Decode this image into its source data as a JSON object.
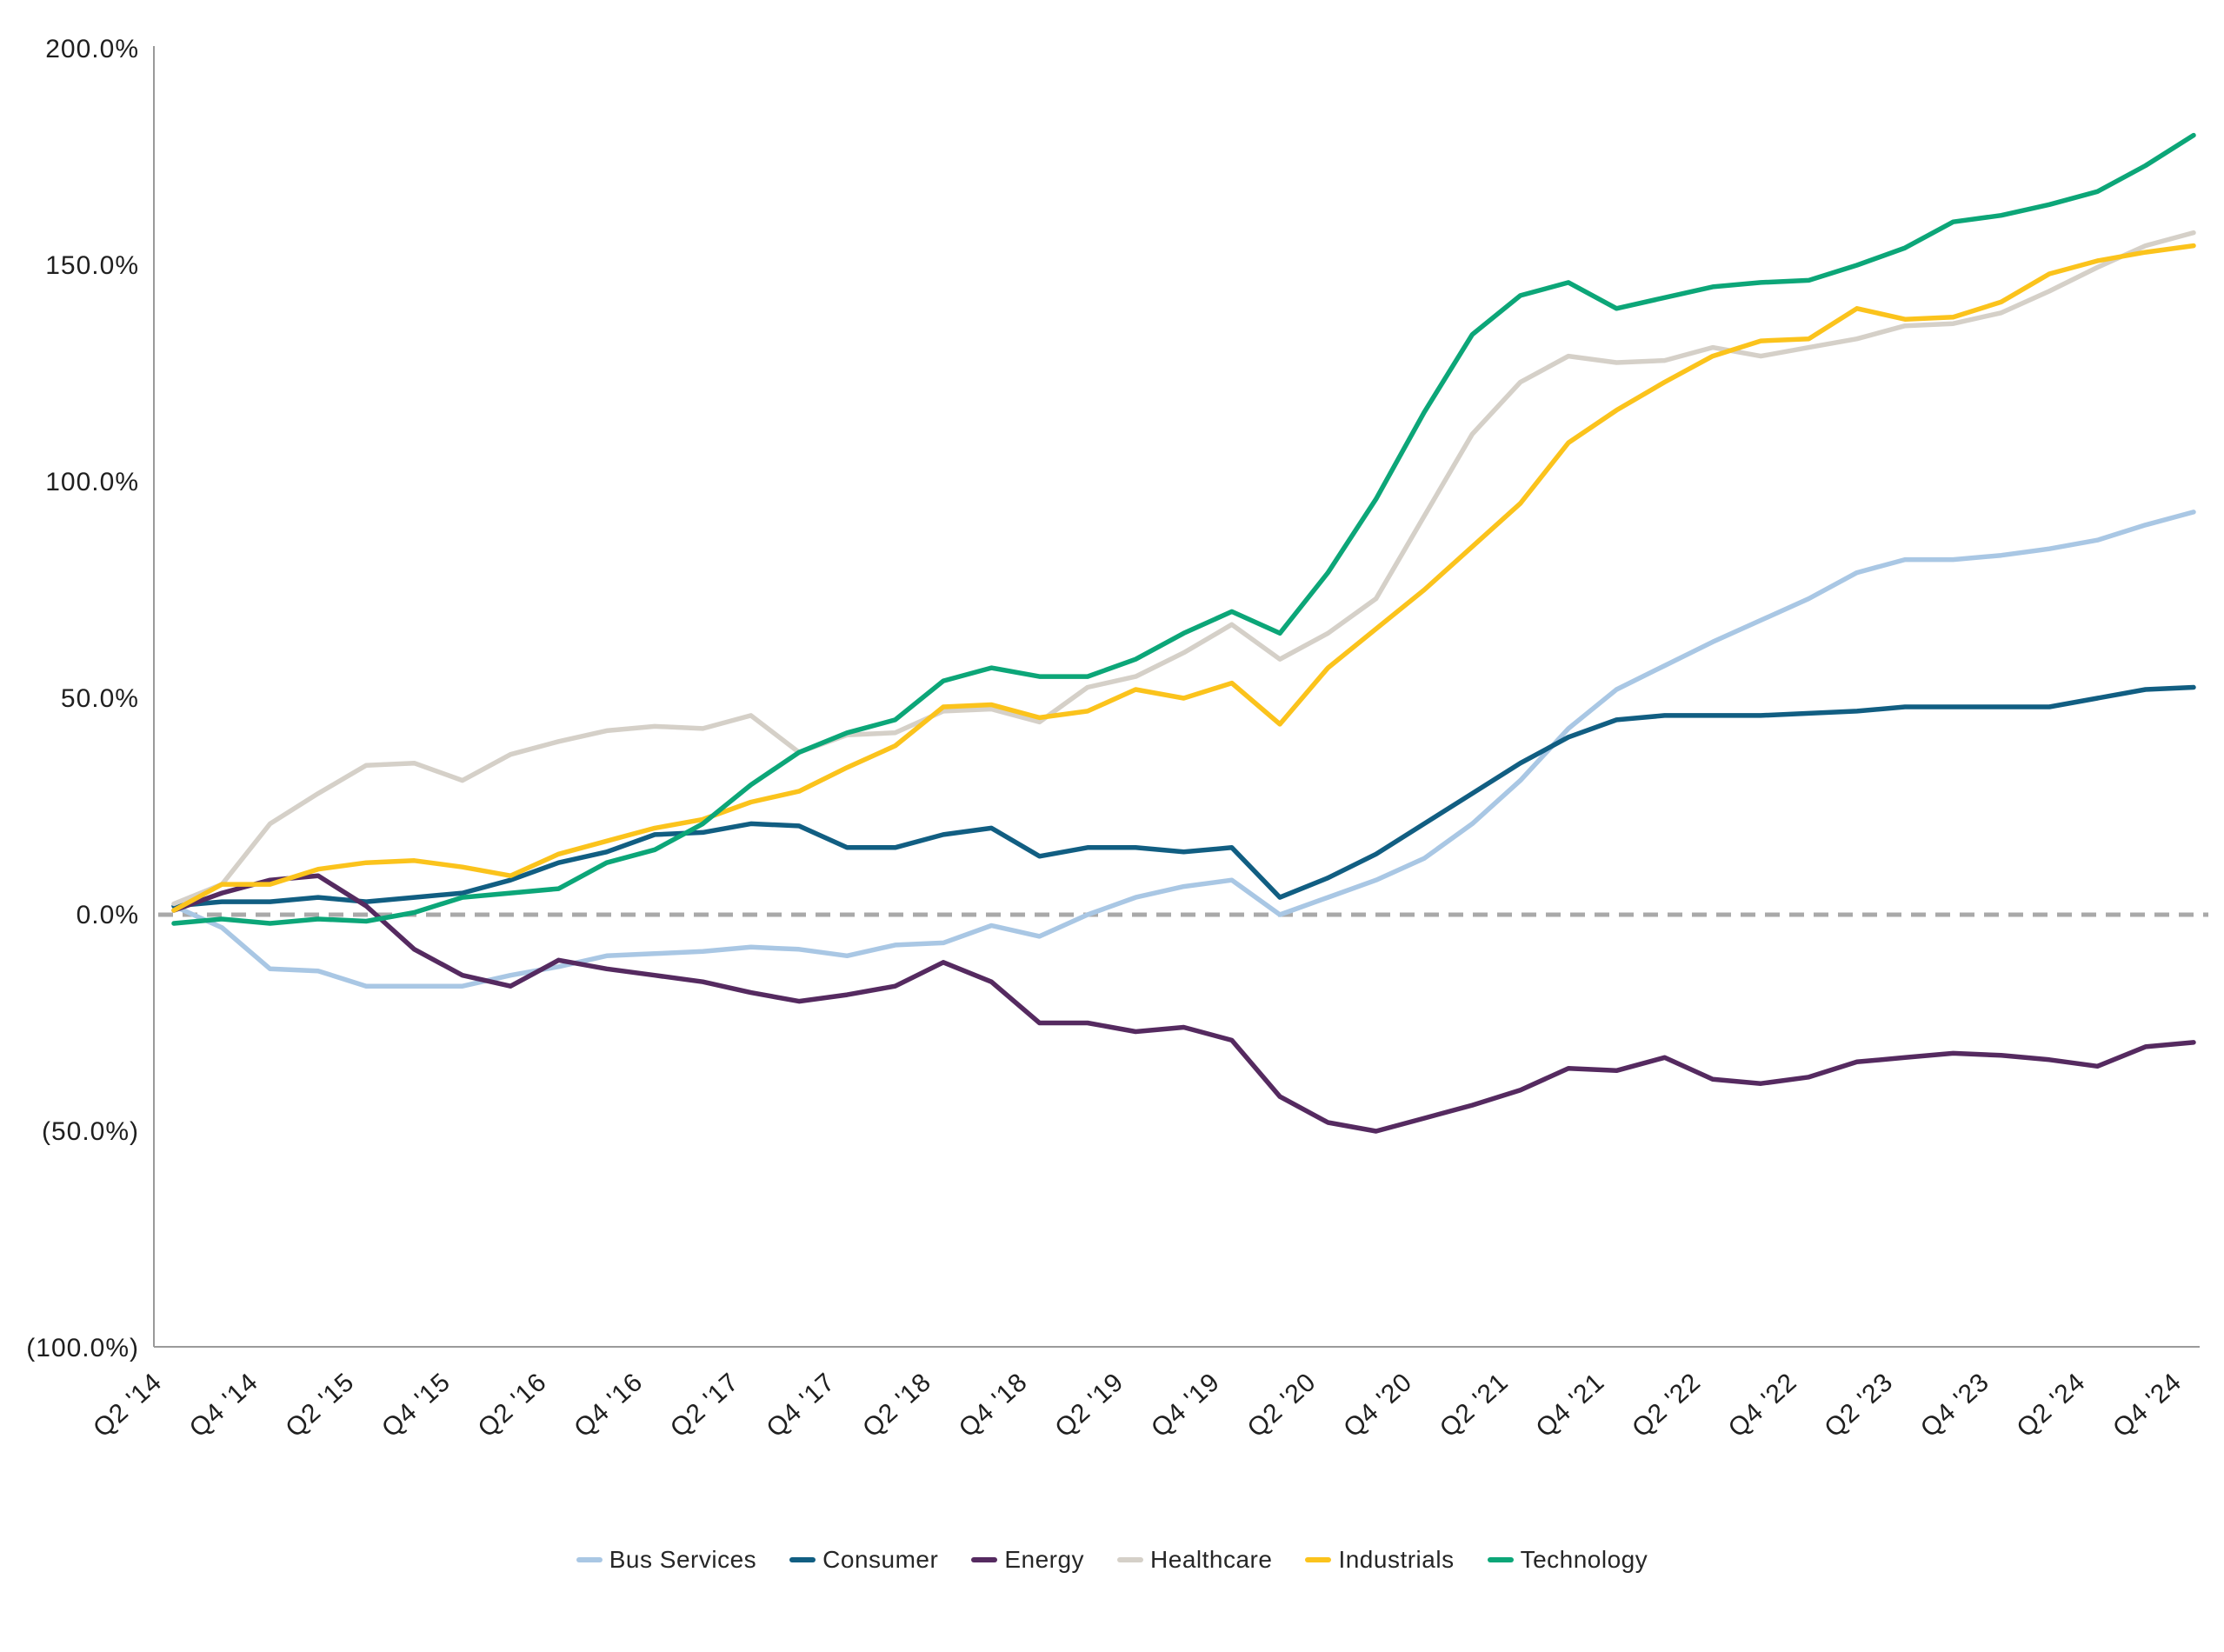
{
  "chart_data": {
    "type": "line",
    "title": "",
    "xlabel": "",
    "ylabel": "",
    "ylim": [
      -100,
      200
    ],
    "grid": "off",
    "zero_line": "dashed",
    "y_ticks": [
      {
        "value": 200,
        "label": "200.0%"
      },
      {
        "value": 150,
        "label": "150.0%"
      },
      {
        "value": 100,
        "label": "100.0%"
      },
      {
        "value": 50,
        "label": "50.0%"
      },
      {
        "value": 0,
        "label": "0.0%"
      },
      {
        "value": -50,
        "label": "(50.0%)"
      },
      {
        "value": -100,
        "label": "(100.0%)"
      }
    ],
    "x_tick_labels": [
      "Q2 '14",
      "Q4 '14",
      "Q2 '15",
      "Q4 '15",
      "Q2 '16",
      "Q4 '16",
      "Q2 '17",
      "Q4 '17",
      "Q2 '18",
      "Q4 '18",
      "Q2 '19",
      "Q4 '19",
      "Q2 '20",
      "Q4 '20",
      "Q2 '21",
      "Q4 '21",
      "Q2 '22",
      "Q4 '22",
      "Q2 '23",
      "Q4 '23",
      "Q2 '24",
      "Q4 '24"
    ],
    "x_quarters_total": 43,
    "legend_position": "bottom-center",
    "series": [
      {
        "name": "Bus Services",
        "color": "#a9c7e4",
        "values": [
          2,
          -3,
          -12.5,
          -13,
          -16.5,
          -16.5,
          -16.5,
          -14,
          -12,
          -9.5,
          -9,
          -8.5,
          -7.5,
          -8,
          -9.5,
          -7,
          -6.5,
          -2.5,
          -5,
          0,
          4,
          6.5,
          8,
          0,
          4,
          8,
          13,
          21,
          31,
          43,
          52,
          57.5,
          63,
          68,
          73,
          79,
          82,
          82,
          83,
          84.5,
          86.5,
          90,
          93
        ]
      },
      {
        "name": "Consumer",
        "color": "#115e82",
        "values": [
          2,
          3,
          3,
          4,
          3,
          4,
          5,
          8,
          12,
          14.5,
          18.5,
          19,
          21,
          20.5,
          15.5,
          15.5,
          18.5,
          20,
          13.5,
          15.5,
          15.5,
          14.5,
          15.5,
          4,
          8.5,
          14,
          21,
          28,
          35,
          41,
          45,
          46,
          46,
          46,
          46.5,
          47,
          48,
          48,
          48,
          48,
          50,
          52,
          52.5
        ]
      },
      {
        "name": "Energy",
        "color": "#552a60",
        "values": [
          1,
          5,
          8,
          9,
          2,
          -8,
          -14,
          -16.5,
          -10.5,
          -12.5,
          -14,
          -15.5,
          -18,
          -20,
          -18.5,
          -16.5,
          -11,
          -15.5,
          -25,
          -25,
          -27,
          -26,
          -29,
          -42,
          -48,
          -50,
          -47,
          -44,
          -40.5,
          -35.5,
          -36,
          -33,
          -38,
          -39,
          -37.5,
          -34,
          -33,
          -32,
          -32.5,
          -33.5,
          -35,
          -30.5,
          -29.5
        ]
      },
      {
        "name": "Healthcare",
        "color": "#d5d0c8",
        "values": [
          2.5,
          7,
          21,
          28,
          34.5,
          35,
          31,
          37,
          40,
          42.5,
          43.5,
          43,
          46,
          37.5,
          41.5,
          42,
          47,
          47.5,
          44.5,
          52.5,
          55,
          60.5,
          67,
          59,
          65,
          73,
          92,
          111,
          123,
          129,
          127.5,
          128,
          131,
          129,
          131,
          133,
          136,
          136.5,
          139,
          144,
          149.5,
          154.5,
          157.5
        ]
      },
      {
        "name": "Industrials",
        "color": "#fbc31c",
        "values": [
          1,
          7,
          7,
          10.5,
          12,
          12.5,
          11,
          9,
          14,
          17,
          20,
          22,
          26,
          28.5,
          34,
          39,
          48,
          48.5,
          45.5,
          47,
          52,
          50,
          53.5,
          44,
          57,
          66,
          75,
          85,
          95,
          109,
          116.5,
          123,
          129,
          132.5,
          133,
          140,
          137.5,
          138,
          141.5,
          148,
          151,
          153,
          154.5
        ]
      },
      {
        "name": "Technology",
        "color": "#0ca678",
        "values": [
          -2,
          -1,
          -2,
          -1,
          -1.5,
          0.5,
          4,
          5,
          6,
          12,
          15,
          21,
          30,
          37.5,
          42,
          45,
          54,
          57,
          55,
          55,
          59,
          65,
          70,
          65,
          79,
          96,
          116,
          134,
          143,
          146,
          140,
          142.5,
          145,
          146,
          146.5,
          150,
          154,
          160,
          161.5,
          164,
          167,
          173,
          180
        ]
      }
    ],
    "axis_color": "#9a9a9a",
    "zero_line_color": "#a9a9a9",
    "tick_label_color": "#1f1f1f"
  }
}
